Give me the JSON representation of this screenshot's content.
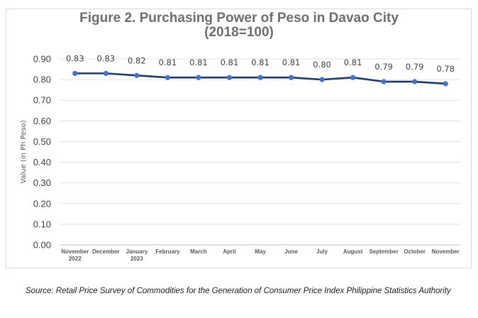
{
  "chart_data": {
    "type": "line",
    "title_line1": "Figure 2. Purchasing Power of Peso in Davao City",
    "title_line2": "(2018=100)",
    "ylabel": "Value (in Ph Peso)",
    "xlabel": "",
    "ylim": [
      0,
      0.9
    ],
    "yticks": [
      "0.00",
      "0.10",
      "0.20",
      "0.30",
      "0.40",
      "0.50",
      "0.60",
      "0.70",
      "0.80",
      "0.90"
    ],
    "categories": [
      [
        "November",
        "2022"
      ],
      [
        "December"
      ],
      [
        "January",
        "2023"
      ],
      [
        "February"
      ],
      [
        "March"
      ],
      [
        "April"
      ],
      [
        "May"
      ],
      [
        "June"
      ],
      [
        "July"
      ],
      [
        "August"
      ],
      [
        "September"
      ],
      [
        "October"
      ],
      [
        "November"
      ]
    ],
    "values": [
      0.83,
      0.83,
      0.82,
      0.81,
      0.81,
      0.81,
      0.81,
      0.81,
      0.8,
      0.81,
      0.79,
      0.79,
      0.78
    ],
    "data_labels": [
      "0.83",
      "0.83",
      "0.82",
      "0.81",
      "0.81",
      "0.81",
      "0.81",
      "0.81",
      "0.80",
      "0.81",
      "0.79",
      "0.79",
      "0.78"
    ],
    "grid": true,
    "legend": "none",
    "line_color": "#1f3864",
    "marker_color": "#4472c4"
  },
  "source_note": "Source: Retail Price Survey of Commodities for the Generation of Consumer Price Index Philippine Statistics Authority"
}
